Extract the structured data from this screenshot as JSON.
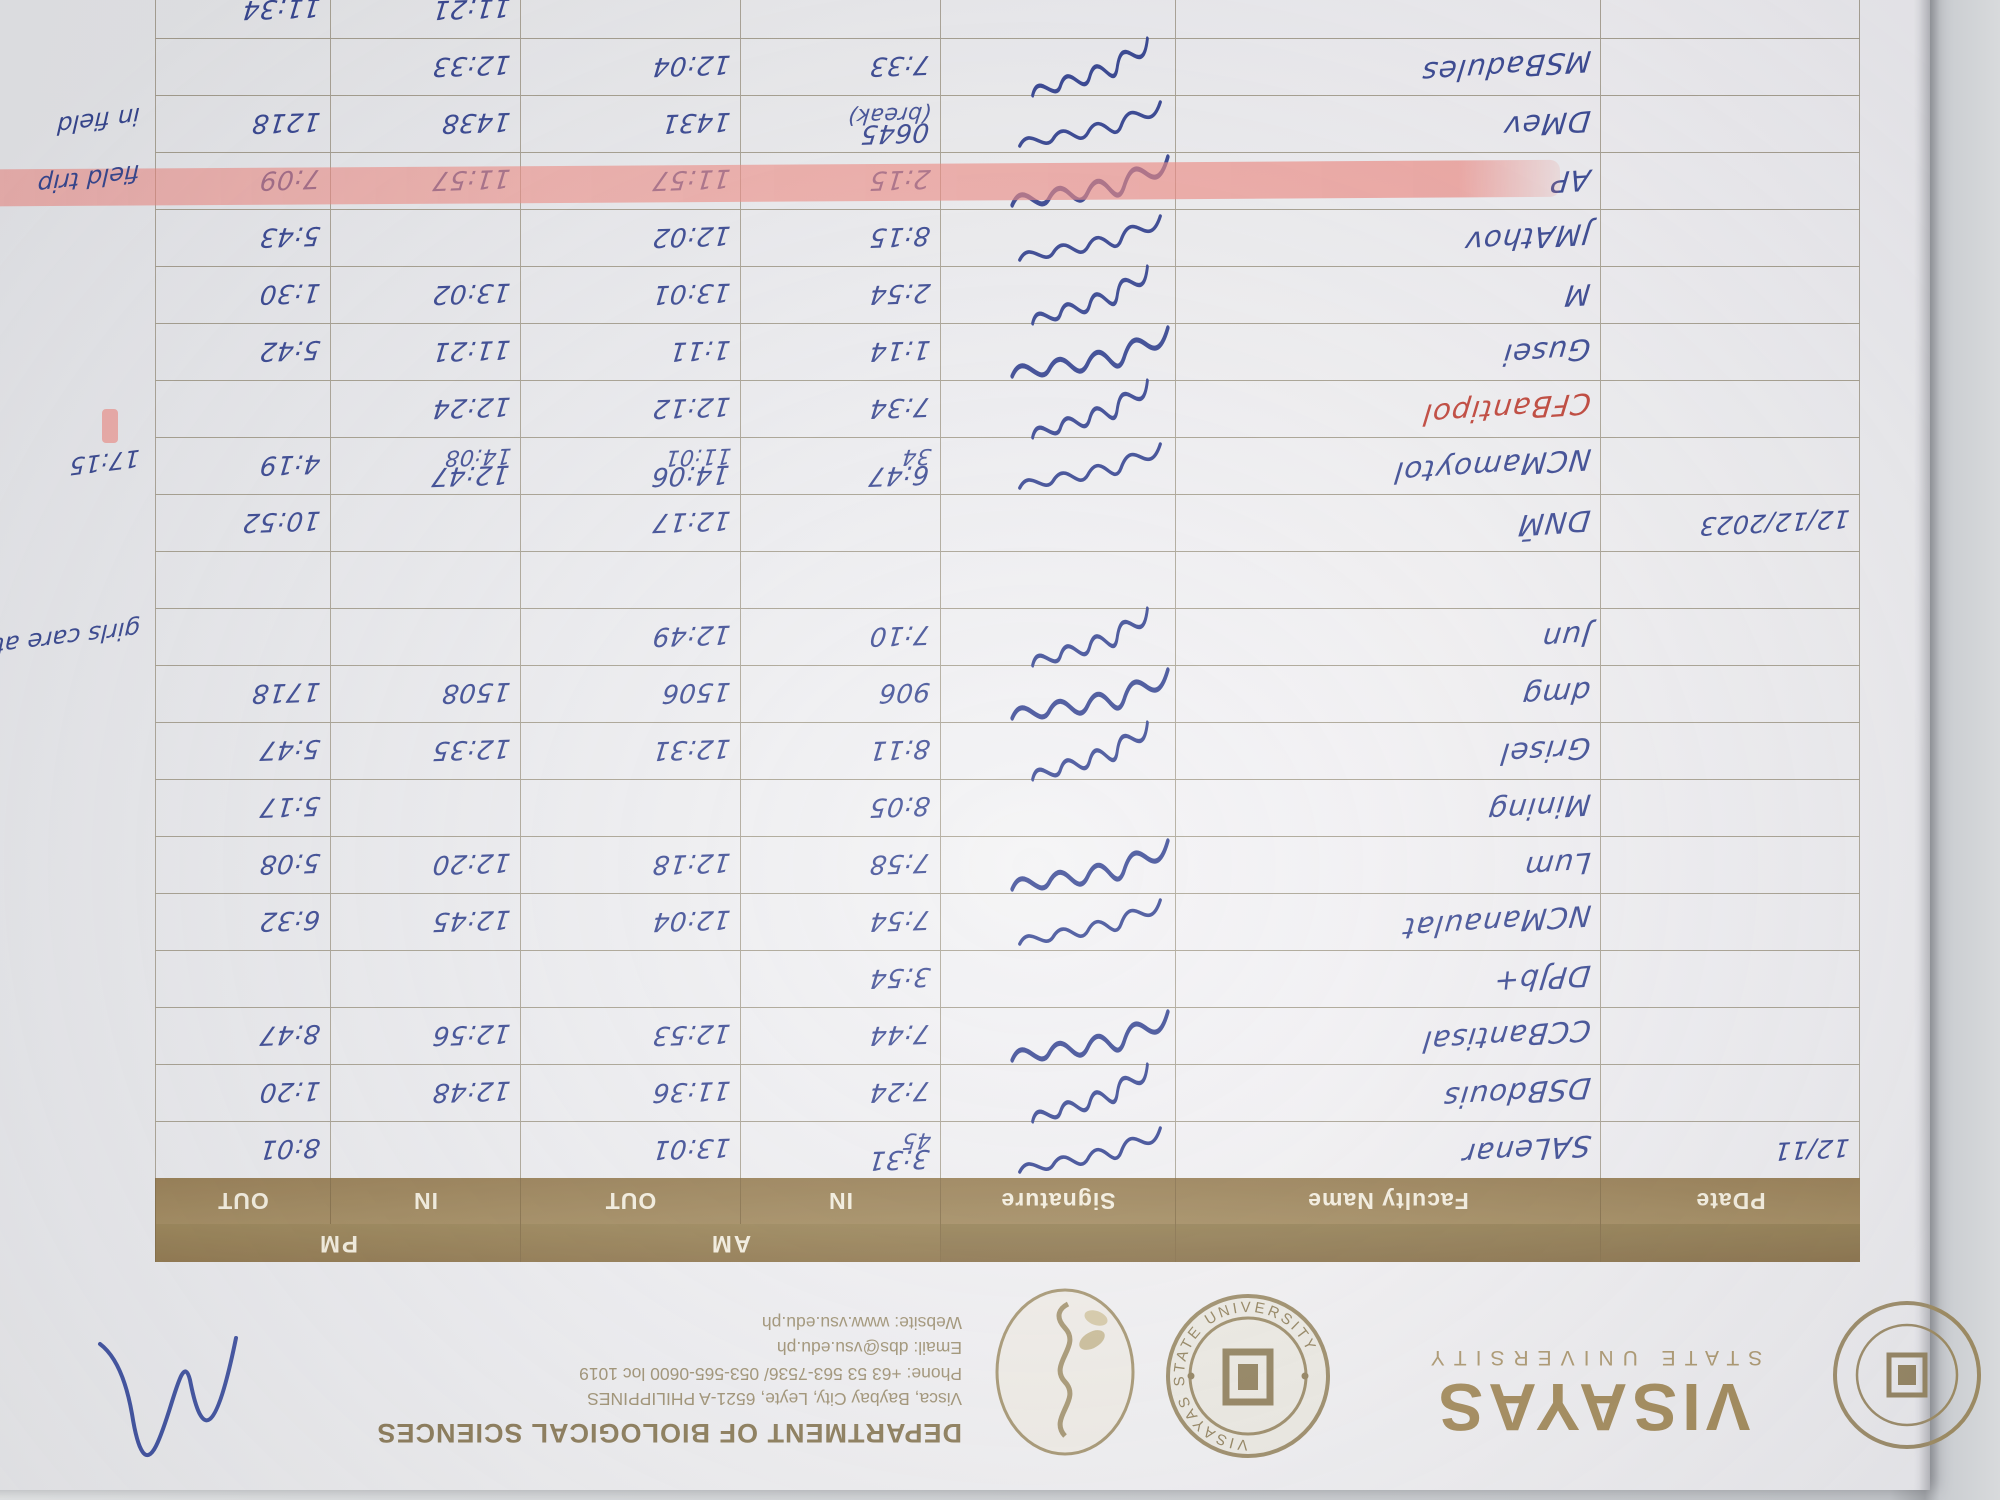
{
  "letterhead": {
    "university": "VISAYAS",
    "university_sub": "STATE UNIVERSITY",
    "department": "DEPARTMENT OF BIOLOGICAL SCIENCES",
    "address": "Visca, Baybay City, Leyte, 6521-A PHILIPPINES",
    "phone": "Phone: +63 53 563-7536/ 053-565-0600 loc 1019",
    "email": "Email: dbs@vsu.edu.ph",
    "website": "Website: www.vsu.edu.ph",
    "seal_ring_text": "VISAYAS STATE UNIVERSITY",
    "brand_color": "#a18753",
    "ink_color": "#31418f",
    "highlight_color": "#f38077"
  },
  "table": {
    "headers": {
      "date": "PDate",
      "name": "Faculty Name",
      "signature": "Signature",
      "am": "AM",
      "pm": "PM",
      "in": "IN",
      "out": "OUT"
    },
    "rows": [
      {
        "date": "12/11",
        "name": "SALenar",
        "ink": "blue",
        "sig": true,
        "hl": false,
        "am_in": "3:31",
        "am_in2": "45",
        "am_out": "13:01",
        "am_out2": "",
        "pm_in": "",
        "pm_in2": "",
        "pm_out": "8:01",
        "pm_out2": "",
        "note": ""
      },
      {
        "date": "",
        "name": "DSBdouis",
        "ink": "blue",
        "sig": true,
        "hl": false,
        "am_in": "7:24",
        "am_in2": "",
        "am_out": "11:36",
        "am_out2": "",
        "pm_in": "12:48",
        "pm_in2": "",
        "pm_out": "1:20",
        "pm_out2": "",
        "note": ""
      },
      {
        "date": "",
        "name": "CCBantisal",
        "ink": "blue",
        "sig": true,
        "hl": false,
        "am_in": "7:44",
        "am_in2": "",
        "am_out": "12:53",
        "am_out2": "",
        "pm_in": "12:56",
        "pm_in2": "",
        "pm_out": "8:47",
        "pm_out2": "",
        "note": ""
      },
      {
        "date": "",
        "name": "DPJb+",
        "ink": "blue",
        "sig": false,
        "hl": false,
        "am_in": "3:54",
        "am_in2": "",
        "am_out": "",
        "am_out2": "",
        "pm_in": "",
        "pm_in2": "",
        "pm_out": "",
        "pm_out2": "",
        "note": ""
      },
      {
        "date": "",
        "name": "NCManaulat",
        "ink": "blue",
        "sig": true,
        "hl": false,
        "am_in": "7:54",
        "am_in2": "",
        "am_out": "12:04",
        "am_out2": "",
        "pm_in": "12:45",
        "pm_in2": "",
        "pm_out": "6:32",
        "pm_out2": "",
        "note": ""
      },
      {
        "date": "",
        "name": "Lum",
        "ink": "blue",
        "sig": true,
        "hl": false,
        "am_in": "7:58",
        "am_in2": "",
        "am_out": "12:18",
        "am_out2": "",
        "pm_in": "12:20",
        "pm_in2": "",
        "pm_out": "5:08",
        "pm_out2": "",
        "note": ""
      },
      {
        "date": "",
        "name": "Mining",
        "ink": "blue",
        "sig": false,
        "hl": false,
        "am_in": "8:05",
        "am_in2": "",
        "am_out": "",
        "am_out2": "",
        "pm_in": "",
        "pm_in2": "",
        "pm_out": "5:17",
        "pm_out2": "",
        "note": ""
      },
      {
        "date": "",
        "name": "Grisel",
        "ink": "blue",
        "sig": true,
        "hl": false,
        "am_in": "8:11",
        "am_in2": "",
        "am_out": "12:31",
        "am_out2": "",
        "pm_in": "12:35",
        "pm_in2": "",
        "pm_out": "5:47",
        "pm_out2": "",
        "note": ""
      },
      {
        "date": "",
        "name": "dmg",
        "ink": "blue",
        "sig": true,
        "hl": false,
        "am_in": "906",
        "am_in2": "",
        "am_out": "1506",
        "am_out2": "",
        "pm_in": "1508",
        "pm_in2": "",
        "pm_out": "1718",
        "pm_out2": "",
        "note": ""
      },
      {
        "date": "",
        "name": "Jun",
        "ink": "blue",
        "sig": true,
        "hl": false,
        "am_in": "7:10",
        "am_in2": "",
        "am_out": "12:49",
        "am_out2": "",
        "pm_in": "",
        "pm_in2": "",
        "pm_out": "",
        "pm_out2": "",
        "note": "girls care at home"
      },
      {
        "date": "",
        "name": "",
        "ink": "blue",
        "sig": false,
        "hl": false,
        "am_in": "",
        "am_in2": "",
        "am_out": "",
        "am_out2": "",
        "pm_in": "",
        "pm_in2": "",
        "pm_out": "",
        "pm_out2": "",
        "note": ""
      },
      {
        "date": "12/12/2023",
        "name": "DNM̄",
        "ink": "blue",
        "sig": false,
        "hl": false,
        "am_in": "",
        "am_in2": "",
        "am_out": "12:17",
        "am_out2": "",
        "pm_in": "",
        "pm_in2": "",
        "pm_out": "10:52",
        "pm_out2": "",
        "note": ""
      },
      {
        "date": "",
        "name": "NCMamoytol",
        "ink": "blue",
        "sig": true,
        "hl": false,
        "am_in": "6:47",
        "am_in2": "34",
        "am_out": "14:06",
        "am_out2": "11:01",
        "pm_in": "12:47",
        "pm_in2": "14:08",
        "pm_out": "4:19",
        "pm_out2": "",
        "note": "17:15"
      },
      {
        "date": "",
        "name": "CFBantipol",
        "ink": "red",
        "sig": true,
        "hl": false,
        "pinkmark": true,
        "am_in": "7:34",
        "am_in2": "",
        "am_out": "12:12",
        "am_out2": "",
        "pm_in": "12:24",
        "pm_in2": "",
        "pm_out": "",
        "pm_out2": "",
        "note": ""
      },
      {
        "date": "",
        "name": "Gusei",
        "ink": "blue",
        "sig": true,
        "hl": false,
        "am_in": "1:14",
        "am_in2": "",
        "am_out": "1:11",
        "am_out2": "",
        "pm_in": "11:21",
        "pm_in2": "",
        "pm_out": "5:42",
        "pm_out2": "",
        "note": ""
      },
      {
        "date": "",
        "name": "M",
        "ink": "blue",
        "sig": true,
        "hl": false,
        "am_in": "2:54",
        "am_in2": "",
        "am_out": "13:01",
        "am_out2": "",
        "pm_in": "13:02",
        "pm_in2": "",
        "pm_out": "1:30",
        "pm_out2": "",
        "note": ""
      },
      {
        "date": "",
        "name": "JMAthov",
        "ink": "blue",
        "sig": true,
        "hl": false,
        "am_in": "8:15",
        "am_in2": "",
        "am_out": "12:02",
        "am_out2": "",
        "pm_in": "",
        "pm_in2": "",
        "pm_out": "5:43",
        "pm_out2": "",
        "note": ""
      },
      {
        "date": "",
        "name": "AP",
        "ink": "blue",
        "sig": true,
        "hl": true,
        "am_in": "2:15",
        "am_in2": "",
        "am_out": "11:57",
        "am_out2": "",
        "pm_in": "11:57",
        "pm_in2": "",
        "pm_out": "7:09",
        "pm_out2": "",
        "note": "field trip"
      },
      {
        "date": "",
        "name": "DMev",
        "ink": "blue",
        "sig": true,
        "hl": false,
        "am_in": "0645",
        "am_in2": "(break)",
        "am_out": "1431",
        "am_out2": "",
        "pm_in": "1438",
        "pm_in2": "",
        "pm_out": "1218",
        "pm_out2": "",
        "note": "in field"
      },
      {
        "date": "",
        "name": "MSBadules",
        "ink": "blue",
        "sig": true,
        "hl": false,
        "am_in": "7:33",
        "am_in2": "",
        "am_out": "12:04",
        "am_out2": "",
        "pm_in": "12:33",
        "pm_in2": "",
        "pm_out": "",
        "pm_out2": "",
        "note": ""
      },
      {
        "date": "",
        "name": "",
        "ink": "blue",
        "sig": false,
        "hl": false,
        "cut": true,
        "am_in": "",
        "am_in2": "",
        "am_out": "",
        "am_out2": "",
        "pm_in": "11:21",
        "pm_in2": "",
        "pm_out": "11:34",
        "pm_out2": "",
        "note": ""
      }
    ]
  }
}
